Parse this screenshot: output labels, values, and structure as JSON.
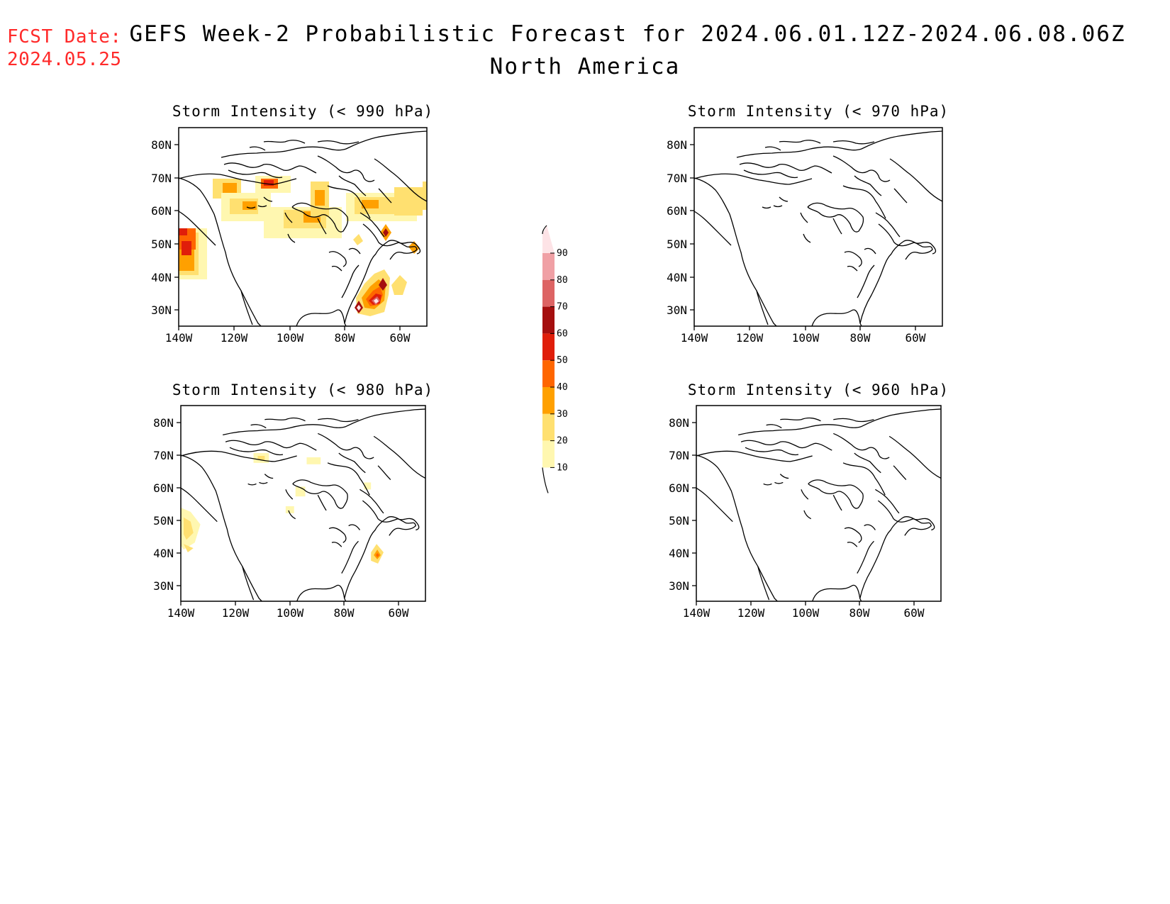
{
  "header": {
    "fcst_label": "FCST Date:",
    "fcst_date": "2024.05.25",
    "title": "GEFS Week-2 Probabilistic Forecast for 2024.06.01.12Z-2024.06.08.06Z",
    "subtitle": "North America"
  },
  "axes": {
    "lat_ticks": [
      "80N",
      "70N",
      "60N",
      "50N",
      "40N",
      "30N"
    ],
    "lon_ticks": [
      "140W",
      "120W",
      "100W",
      "80W",
      "60W"
    ]
  },
  "panels": [
    {
      "title": "Storm Intensity (< 990 hPa)",
      "threshold": "990 hPa"
    },
    {
      "title": "Storm Intensity (< 970 hPa)",
      "threshold": "970 hPa"
    },
    {
      "title": "Storm Intensity (< 980 hPa)",
      "threshold": "980 hPa"
    },
    {
      "title": "Storm Intensity (< 960 hPa)",
      "threshold": "960 hPa"
    }
  ],
  "colorbar": {
    "labels": [
      "90",
      "80",
      "70",
      "60",
      "50",
      "40",
      "30",
      "20",
      "10"
    ],
    "colors": [
      "#fde3e6",
      "#f0a0a5",
      "#dd6464",
      "#a50f0f",
      "#e01e0a",
      "#ff6600",
      "#ffa000",
      "#ffe070",
      "#fff7b0"
    ]
  }
}
